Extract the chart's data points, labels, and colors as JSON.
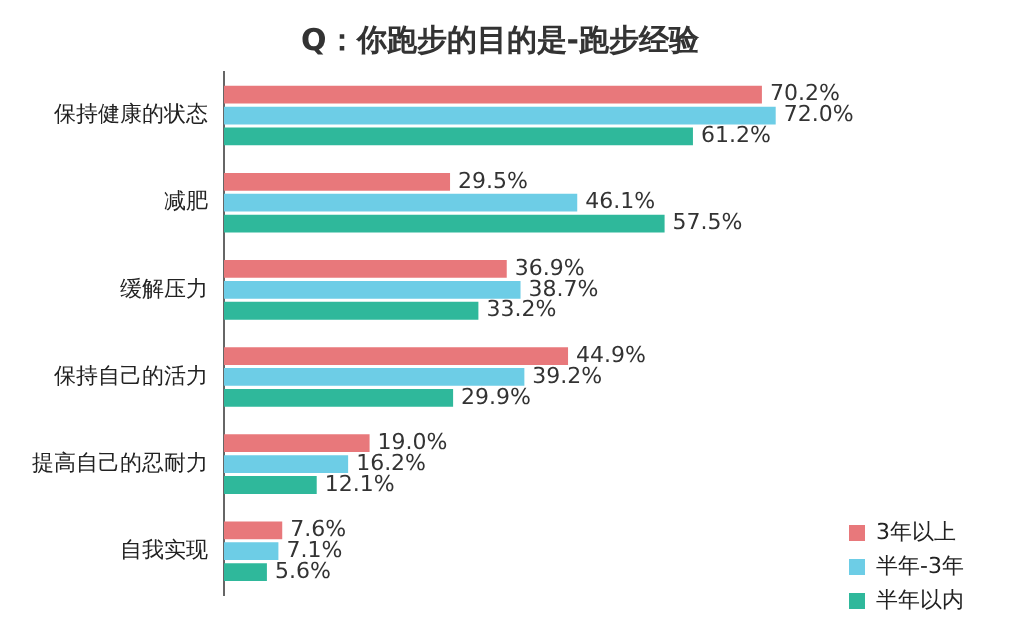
{
  "chart_data": {
    "type": "bar",
    "orientation": "horizontal",
    "title": "Q：你跑步的目的是-跑步经验",
    "categories": [
      "保持健康的状态",
      "减肥",
      "缓解压力",
      "保持自己的活力",
      "提高自己的忍耐力",
      "自我实现"
    ],
    "series": [
      {
        "name": "3年以上",
        "color": "#e8787b",
        "values": [
          70.2,
          29.5,
          36.9,
          44.9,
          19.0,
          7.6
        ],
        "value_labels": [
          "70.2%",
          "29.5%",
          "36.9%",
          "44.9%",
          "19.0%",
          "7.6%"
        ]
      },
      {
        "name": "半年-3年",
        "color": "#6dcde6",
        "values": [
          72.0,
          46.1,
          38.7,
          39.2,
          16.2,
          7.1
        ],
        "value_labels": [
          "72.0%",
          "46.1%",
          "38.7%",
          "39.2%",
          "16.2%",
          "7.1%"
        ]
      },
      {
        "name": "半年以内",
        "color": "#2fb89b",
        "values": [
          61.2,
          57.5,
          33.2,
          29.9,
          12.1,
          5.6
        ],
        "value_labels": [
          "61.2%",
          "57.5%",
          "33.2%",
          "29.9%",
          "12.1%",
          "5.6%"
        ]
      }
    ],
    "tick_labels": "y",
    "grid": false,
    "legend": "bottom right"
  }
}
